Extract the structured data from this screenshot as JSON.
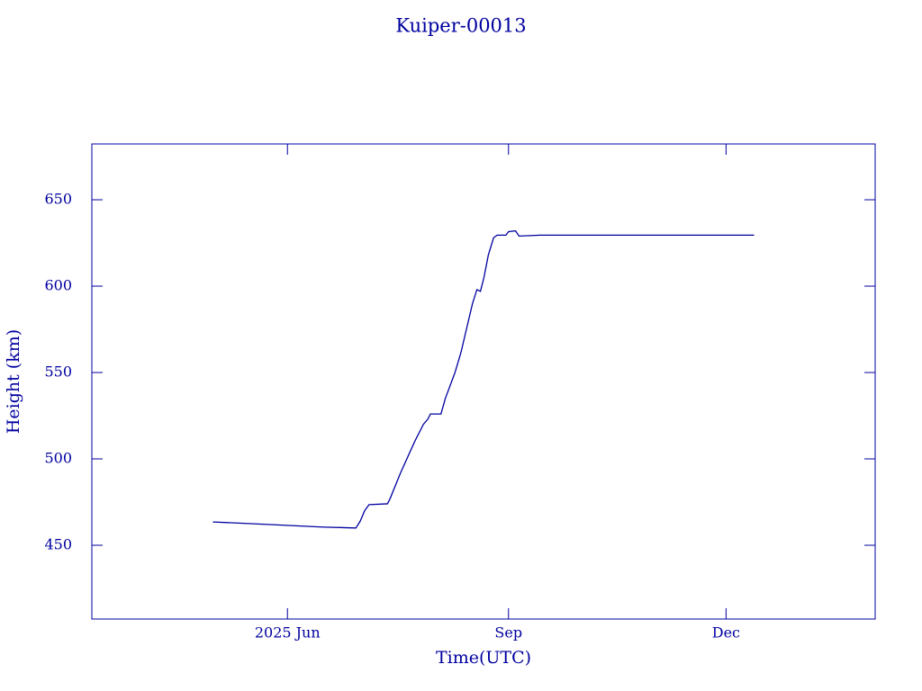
{
  "chart_data": {
    "type": "line",
    "title": "Kuiper-00013",
    "x_label": "Time(UTC)",
    "y_label": "Height (km)",
    "x": [
      2025.329,
      2025.394,
      2025.456,
      2025.492,
      2025.497,
      2025.502,
      2025.507,
      2025.528,
      2025.531,
      2025.543,
      2025.559,
      2025.569,
      2025.574,
      2025.577,
      2025.589,
      2025.594,
      2025.605,
      2025.612,
      2025.618,
      2025.625,
      2025.63,
      2025.634,
      2025.638,
      2025.643,
      2025.649,
      2025.653,
      2025.663,
      2025.666,
      2025.674,
      2025.678,
      2025.702,
      2025.754,
      2025.805,
      2025.866,
      2025.907,
      2025.946
    ],
    "series": [
      {
        "name": "Height",
        "color": "#0000a0",
        "values": [
          463.5,
          462,
          460.5,
          460,
          464,
          470,
          473.5,
          474,
          477,
          492,
          510,
          520,
          523,
          526,
          526,
          535,
          550,
          562,
          575,
          590,
          598,
          597,
          605,
          618,
          628,
          629.5,
          629.5,
          631.5,
          632,
          629,
          629.5,
          629.5,
          629.5,
          629.5,
          629.5,
          629.5
        ]
      }
    ],
    "xlim": [
      2025.191,
      2026.084
    ],
    "xticks": [
      {
        "value": 2025.414,
        "label": "2025 Jun"
      },
      {
        "value": 2025.666,
        "label": "Sep"
      },
      {
        "value": 2025.914,
        "label": "Dec"
      }
    ],
    "ylim": [
      407.3,
      682.3
    ],
    "yticks": [
      450,
      500,
      550,
      600,
      650
    ],
    "grid": false
  }
}
